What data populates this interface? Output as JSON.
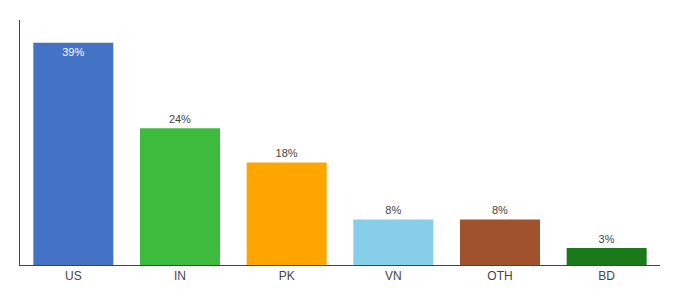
{
  "chart_data": {
    "type": "bar",
    "categories": [
      "US",
      "IN",
      "PK",
      "VN",
      "OTH",
      "BD"
    ],
    "values": [
      39,
      24,
      18,
      8,
      8,
      3
    ],
    "value_labels": [
      "39%",
      "24%",
      "18%",
      "8%",
      "8%",
      "3%"
    ],
    "colors": [
      "#4472c4",
      "#3dbb3d",
      "#ffa500",
      "#87ceeb",
      "#a0522d",
      "#1a7a1a"
    ],
    "ylim": [
      0,
      43
    ],
    "data_labels": true,
    "tick_labels": "x",
    "grid": false
  }
}
